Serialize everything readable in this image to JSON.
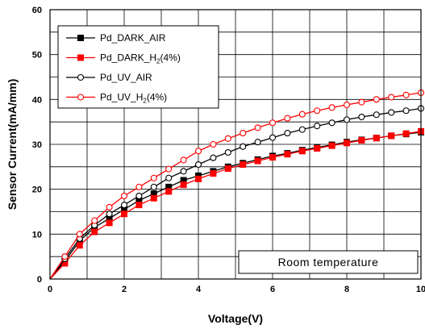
{
  "chart_data": {
    "type": "line",
    "xlabel": "Voltage(V)",
    "ylabel": "Sensor Current(mA/mm)",
    "xlim": [
      0,
      10
    ],
    "ylim": [
      0,
      60
    ],
    "xticks": [
      0,
      2,
      4,
      6,
      8,
      10
    ],
    "yticks": [
      0,
      10,
      20,
      30,
      40,
      50,
      60
    ],
    "grid": true,
    "legend_position": "top-left",
    "annotation": "Room temperature",
    "series": [
      {
        "name": "Pd_DARK_AIR",
        "color": "#000000",
        "marker": "square-filled",
        "x": [
          0,
          0.4,
          0.8,
          1.2,
          1.6,
          2.0,
          2.4,
          2.8,
          3.2,
          3.6,
          4.0,
          4.4,
          4.8,
          5.2,
          5.6,
          6.0,
          6.4,
          6.8,
          7.2,
          7.6,
          8.0,
          8.4,
          8.8,
          9.2,
          9.6,
          10.0
        ],
        "y": [
          0,
          4.0,
          8.5,
          11.5,
          13.5,
          15.5,
          17.5,
          19.0,
          20.5,
          22.0,
          23.0,
          24.0,
          25.0,
          25.8,
          26.6,
          27.4,
          28.0,
          28.7,
          29.3,
          29.9,
          30.5,
          31.0,
          31.4,
          31.9,
          32.3,
          32.7
        ]
      },
      {
        "name": "Pd_DARK_H2(4%)",
        "color": "#ff0000",
        "marker": "square-filled",
        "x": [
          0,
          0.4,
          0.8,
          1.2,
          1.6,
          2.0,
          2.4,
          2.8,
          3.2,
          3.6,
          4.0,
          4.4,
          4.8,
          5.2,
          5.6,
          6.0,
          6.4,
          6.8,
          7.2,
          7.6,
          8.0,
          8.4,
          8.8,
          9.2,
          9.6,
          10.0
        ],
        "y": [
          0,
          3.5,
          7.5,
          10.5,
          12.5,
          14.5,
          16.5,
          18.0,
          19.5,
          21.0,
          22.3,
          23.5,
          24.6,
          25.5,
          26.3,
          27.1,
          27.8,
          28.5,
          29.1,
          29.7,
          30.3,
          30.9,
          31.4,
          31.9,
          32.4,
          32.9
        ]
      },
      {
        "name": "Pd_UV_AIR",
        "color": "#000000",
        "marker": "circle-open",
        "x": [
          0,
          0.4,
          0.8,
          1.2,
          1.6,
          2.0,
          2.4,
          2.8,
          3.2,
          3.6,
          4.0,
          4.4,
          4.8,
          5.2,
          5.6,
          6.0,
          6.4,
          6.8,
          7.2,
          7.6,
          8.0,
          8.4,
          8.8,
          9.2,
          9.6,
          10.0
        ],
        "y": [
          0,
          4.5,
          9.0,
          12.0,
          14.5,
          16.5,
          18.5,
          20.5,
          22.5,
          24.0,
          25.5,
          27.0,
          28.2,
          29.5,
          30.5,
          31.5,
          32.5,
          33.3,
          34.1,
          34.8,
          35.5,
          36.1,
          36.6,
          37.1,
          37.5,
          38.0
        ]
      },
      {
        "name": "Pd_UV_H2(4%)",
        "color": "#ff0000",
        "marker": "circle-open",
        "x": [
          0,
          0.4,
          0.8,
          1.2,
          1.6,
          2.0,
          2.4,
          2.8,
          3.2,
          3.6,
          4.0,
          4.4,
          4.8,
          5.2,
          5.6,
          6.0,
          6.4,
          6.8,
          7.2,
          7.6,
          8.0,
          8.4,
          8.8,
          9.2,
          9.6,
          10.0
        ],
        "y": [
          0,
          5.0,
          10.0,
          13.0,
          16.0,
          18.5,
          20.5,
          22.5,
          24.5,
          26.5,
          28.5,
          30.0,
          31.3,
          32.5,
          33.7,
          34.8,
          35.8,
          36.7,
          37.5,
          38.2,
          38.8,
          39.4,
          40.0,
          40.5,
          41.0,
          41.5
        ]
      }
    ]
  }
}
